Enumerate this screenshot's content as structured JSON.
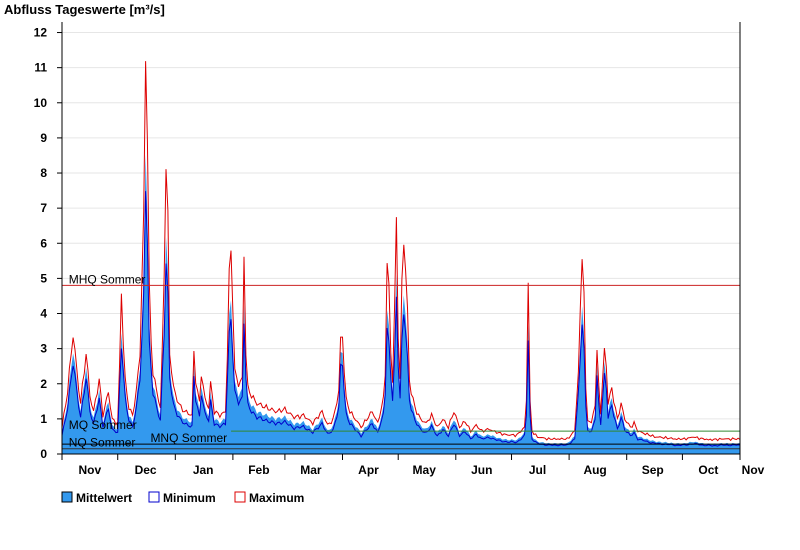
{
  "chart_data": {
    "type": "area",
    "title": "Abfluss Tageswerte [m³/s]",
    "y_ticks": [
      "0",
      "1",
      "2",
      "3",
      "4",
      "5",
      "6",
      "7",
      "8",
      "9",
      "10",
      "11",
      "12"
    ],
    "ylim": [
      0,
      12.3
    ],
    "xlim": [
      0,
      365
    ],
    "x_ticks": [
      {
        "label": "Nov",
        "day": 15
      },
      {
        "label": "Dec",
        "day": 45
      },
      {
        "label": "Jan",
        "day": 76
      },
      {
        "label": "Feb",
        "day": 106
      },
      {
        "label": "Mar",
        "day": 134
      },
      {
        "label": "Apr",
        "day": 165
      },
      {
        "label": "May",
        "day": 195
      },
      {
        "label": "Jun",
        "day": 226
      },
      {
        "label": "Jul",
        "day": 256
      },
      {
        "label": "Aug",
        "day": 287
      },
      {
        "label": "Sep",
        "day": 318
      },
      {
        "label": "Oct",
        "day": 348
      },
      {
        "label": "Nov",
        "day": 372
      }
    ],
    "month_boundaries": [
      0,
      30,
      61,
      92,
      120,
      151,
      181,
      212,
      242,
      273,
      304,
      334,
      365
    ],
    "grid": true,
    "legend": {
      "placement": "bottom-left",
      "items": [
        {
          "label": "Mittelwert",
          "color": "#3399ee",
          "type": "filled"
        },
        {
          "label": "Minimum",
          "color": "#0000cc",
          "type": "outline"
        },
        {
          "label": "Maximum",
          "color": "#dd0000",
          "type": "outline"
        }
      ]
    },
    "reference_lines": [
      {
        "label": "MHQ Sommer",
        "value": 4.8,
        "color": "#cc2222",
        "x_start": 0,
        "x_end": 365,
        "label_day": 2
      },
      {
        "label": "MQ Sommer",
        "value": 0.65,
        "color": "#338833",
        "x_start": 91,
        "x_end": 365,
        "label_day": 2
      },
      {
        "label": "MNQ Sommer",
        "value": 0.28,
        "color": "#000000",
        "x_start": 0,
        "x_end": 365,
        "label_day": 46
      },
      {
        "label": "NQ Sommer",
        "value": 0.15,
        "color": "#333333",
        "x_start": 0,
        "x_end": 365,
        "label_day": 2
      }
    ],
    "mean_keypoints": [
      [
        0,
        0.6
      ],
      [
        3,
        1.5
      ],
      [
        6,
        3.0
      ],
      [
        8,
        2.0
      ],
      [
        10,
        1.2
      ],
      [
        13,
        2.5
      ],
      [
        15,
        1.4
      ],
      [
        17,
        1.0
      ],
      [
        20,
        1.8
      ],
      [
        22,
        0.9
      ],
      [
        25,
        1.5
      ],
      [
        27,
        0.8
      ],
      [
        30,
        0.7
      ],
      [
        32,
        3.6
      ],
      [
        34,
        1.8
      ],
      [
        36,
        1.1
      ],
      [
        38,
        0.9
      ],
      [
        40,
        1.5
      ],
      [
        42,
        2.5
      ],
      [
        44,
        5.0
      ],
      [
        45,
        8.8
      ],
      [
        46,
        7.0
      ],
      [
        47,
        3.5
      ],
      [
        49,
        2.0
      ],
      [
        51,
        1.5
      ],
      [
        53,
        1.1
      ],
      [
        55,
        4.0
      ],
      [
        56,
        6.3
      ],
      [
        57,
        5.0
      ],
      [
        58,
        2.5
      ],
      [
        60,
        1.6
      ],
      [
        62,
        1.3
      ],
      [
        64,
        1.1
      ],
      [
        66,
        1.0
      ],
      [
        70,
        0.9
      ],
      [
        71,
        2.5
      ],
      [
        72,
        1.8
      ],
      [
        74,
        1.2
      ],
      [
        75,
        2.0
      ],
      [
        77,
        1.3
      ],
      [
        79,
        1.1
      ],
      [
        80,
        1.7
      ],
      [
        82,
        1.0
      ],
      [
        85,
        0.9
      ],
      [
        88,
        1.0
      ],
      [
        90,
        3.8
      ],
      [
        91,
        4.4
      ],
      [
        92,
        3.2
      ],
      [
        93,
        2.0
      ],
      [
        95,
        1.7
      ],
      [
        97,
        1.8
      ],
      [
        98,
        4.4
      ],
      [
        99,
        2.5
      ],
      [
        100,
        1.6
      ],
      [
        102,
        1.4
      ],
      [
        105,
        1.2
      ],
      [
        110,
        1.1
      ],
      [
        115,
        1.0
      ],
      [
        120,
        1.05
      ],
      [
        125,
        0.85
      ],
      [
        130,
        0.9
      ],
      [
        135,
        0.7
      ],
      [
        140,
        1.0
      ],
      [
        143,
        0.65
      ],
      [
        146,
        0.8
      ],
      [
        149,
        1.5
      ],
      [
        150,
        2.8
      ],
      [
        151,
        3.0
      ],
      [
        152,
        2.0
      ],
      [
        153,
        1.3
      ],
      [
        155,
        1.0
      ],
      [
        158,
        0.8
      ],
      [
        161,
        0.6
      ],
      [
        164,
        0.8
      ],
      [
        167,
        1.0
      ],
      [
        170,
        0.7
      ],
      [
        173,
        1.3
      ],
      [
        174,
        2.0
      ],
      [
        175,
        4.2
      ],
      [
        176,
        3.5
      ],
      [
        177,
        2.5
      ],
      [
        178,
        1.8
      ],
      [
        179,
        3.0
      ],
      [
        180,
        5.0
      ],
      [
        181,
        3.0
      ],
      [
        182,
        1.8
      ],
      [
        183,
        3.6
      ],
      [
        184,
        4.7
      ],
      [
        185,
        4.0
      ],
      [
        186,
        3.0
      ],
      [
        187,
        1.8
      ],
      [
        188,
        1.5
      ],
      [
        190,
        1.1
      ],
      [
        193,
        0.8
      ],
      [
        196,
        0.7
      ],
      [
        199,
        0.9
      ],
      [
        202,
        0.6
      ],
      [
        205,
        0.8
      ],
      [
        208,
        0.6
      ],
      [
        211,
        1.0
      ],
      [
        214,
        0.6
      ],
      [
        217,
        0.75
      ],
      [
        220,
        0.5
      ],
      [
        223,
        0.65
      ],
      [
        226,
        0.5
      ],
      [
        230,
        0.55
      ],
      [
        235,
        0.45
      ],
      [
        240,
        0.4
      ],
      [
        245,
        0.4
      ],
      [
        249,
        0.6
      ],
      [
        250,
        1.3
      ],
      [
        251,
        3.8
      ],
      [
        252,
        1.2
      ],
      [
        253,
        0.5
      ],
      [
        256,
        0.35
      ],
      [
        262,
        0.3
      ],
      [
        268,
        0.3
      ],
      [
        272,
        0.3
      ],
      [
        276,
        0.5
      ],
      [
        278,
        2.0
      ],
      [
        279,
        3.0
      ],
      [
        280,
        4.4
      ],
      [
        281,
        3.5
      ],
      [
        282,
        1.5
      ],
      [
        283,
        0.8
      ],
      [
        285,
        0.7
      ],
      [
        287,
        1.2
      ],
      [
        288,
        2.5
      ],
      [
        289,
        1.6
      ],
      [
        290,
        1.0
      ],
      [
        292,
        2.5
      ],
      [
        293,
        2.2
      ],
      [
        294,
        1.2
      ],
      [
        296,
        1.6
      ],
      [
        297,
        1.3
      ],
      [
        299,
        0.8
      ],
      [
        301,
        1.2
      ],
      [
        303,
        0.8
      ],
      [
        306,
        0.6
      ],
      [
        308,
        0.7
      ],
      [
        310,
        0.5
      ],
      [
        313,
        0.45
      ],
      [
        316,
        0.4
      ],
      [
        320,
        0.35
      ],
      [
        325,
        0.33
      ],
      [
        330,
        0.3
      ],
      [
        335,
        0.3
      ],
      [
        340,
        0.35
      ],
      [
        345,
        0.3
      ],
      [
        350,
        0.28
      ],
      [
        355,
        0.3
      ],
      [
        360,
        0.3
      ],
      [
        365,
        0.3
      ]
    ]
  }
}
